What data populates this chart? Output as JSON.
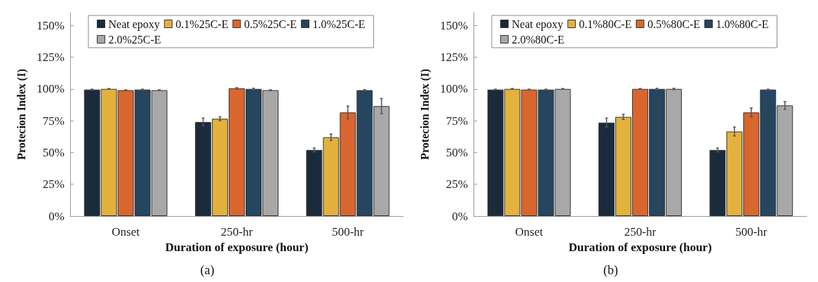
{
  "chart_data": [
    {
      "type": "bar",
      "categories": [
        "Onset",
        "250-hr",
        "500-hr"
      ],
      "xlabel": "Duration of exposure (hour)",
      "ylabel": "Protecion Index (I)",
      "ylim": [
        0,
        160
      ],
      "yticks": [
        {
          "value": 0,
          "label": "0%"
        },
        {
          "value": 25,
          "label": "25%"
        },
        {
          "value": 50,
          "label": "50%"
        },
        {
          "value": 75,
          "label": "75%"
        },
        {
          "value": 100,
          "label": "100%"
        },
        {
          "value": 125,
          "label": "125%"
        },
        {
          "value": 150,
          "label": "150%"
        }
      ],
      "legend": "top",
      "grid": false,
      "annotations": [
        "(a)"
      ],
      "series": [
        {
          "name": "Neat epoxy",
          "color": "#1a2b3c",
          "values": [
            99.5,
            74,
            52
          ],
          "errors": [
            0.3,
            3,
            1.5
          ]
        },
        {
          "name": "0.1%25C-E",
          "color": "#e3b23c",
          "values": [
            100,
            76.5,
            62
          ],
          "errors": [
            0.3,
            1.5,
            2.5
          ]
        },
        {
          "name": "0.5%25C-E",
          "color": "#d9662e",
          "values": [
            99,
            100.5,
            81.5
          ],
          "errors": [
            0.3,
            0.5,
            5
          ]
        },
        {
          "name": "1.0%25C-E",
          "color": "#26455f",
          "values": [
            99.5,
            100,
            99
          ],
          "errors": [
            0.3,
            0.5,
            0.5
          ]
        },
        {
          "name": "2.0%25C-E",
          "color": "#a8a8a8",
          "values": [
            99,
            99,
            86.5
          ],
          "errors": [
            0.3,
            0.3,
            6
          ]
        }
      ]
    },
    {
      "type": "bar",
      "categories": [
        "Onset",
        "250-hr",
        "500-hr"
      ],
      "xlabel": "Duration of exposure (hour)",
      "ylabel": "Protecion Index (I)",
      "ylim": [
        0,
        160
      ],
      "yticks": [
        {
          "value": 0,
          "label": "0%"
        },
        {
          "value": 25,
          "label": "25%"
        },
        {
          "value": 50,
          "label": "50%"
        },
        {
          "value": 75,
          "label": "75%"
        },
        {
          "value": 100,
          "label": "100%"
        },
        {
          "value": 125,
          "label": "125%"
        },
        {
          "value": 150,
          "label": "150%"
        }
      ],
      "legend": "top",
      "grid": false,
      "annotations": [
        "(b)"
      ],
      "series": [
        {
          "name": "Neat epoxy",
          "color": "#1a2b3c",
          "values": [
            99.5,
            73.5,
            52
          ],
          "errors": [
            0.3,
            3.5,
            1.5
          ]
        },
        {
          "name": "0.1%80C-E",
          "color": "#e3b23c",
          "values": [
            100,
            78,
            66.5
          ],
          "errors": [
            0.3,
            2,
            3.5
          ]
        },
        {
          "name": "0.5%80C-E",
          "color": "#d9662e",
          "values": [
            99.5,
            100,
            81.5
          ],
          "errors": [
            0.3,
            0.3,
            3.5
          ]
        },
        {
          "name": "1.0%80C-E",
          "color": "#26455f",
          "values": [
            99.5,
            100,
            99.5
          ],
          "errors": [
            0.3,
            0.5,
            0.3
          ]
        },
        {
          "name": "2.0%80C-E",
          "color": "#a8a8a8",
          "values": [
            100,
            100,
            87
          ],
          "errors": [
            0.3,
            0.5,
            3
          ]
        }
      ]
    }
  ]
}
